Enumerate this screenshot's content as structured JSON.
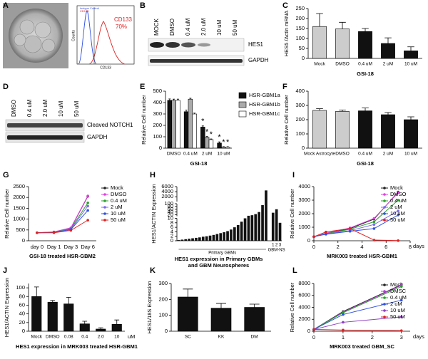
{
  "panel_labels": [
    "A",
    "B",
    "C",
    "D",
    "E",
    "F",
    "G",
    "H",
    "I",
    "J",
    "K",
    "L"
  ],
  "panel_a": {
    "y_label": "Counts",
    "x_label": "CD133",
    "legend": [
      "Isotype Control",
      "CD133"
    ],
    "marker": "CD133",
    "percent": "70%"
  },
  "panel_b": {
    "lanes": [
      "MOCK",
      "DMSO",
      "0.4 uM",
      "2.0 uM",
      "10 uM",
      "50 uM"
    ],
    "bands": [
      "HES1",
      "GAPDH"
    ]
  },
  "panel_d": {
    "lanes": [
      "DMSO",
      "0.4 uM",
      "2.0 uM",
      "10 uM",
      "50 uM"
    ],
    "bands": [
      "Cleaved NOTCH1",
      "GAPDH"
    ]
  },
  "chart_data": [
    {
      "type": "bar",
      "y_label": "HES5 /Actin mRNA",
      "x_label": "GSI-18",
      "categories": [
        "Mock",
        "DMSO",
        "0.4 uM",
        "2 uM",
        "10 uM"
      ],
      "values": [
        160,
        148,
        135,
        75,
        38
      ],
      "errors": [
        65,
        33,
        15,
        28,
        20
      ],
      "colors": [
        "#cccccc",
        "#cccccc",
        "#111111",
        "#111111",
        "#111111"
      ],
      "ylim": [
        0,
        250
      ],
      "yticks": [
        0,
        50,
        100,
        150,
        200,
        250
      ]
    },
    {
      "type": "grouped-bar",
      "y_label": "Relative Cell number",
      "x_label": "GSI-18",
      "categories": [
        "DMSO",
        "0.4 uM",
        "2 uM",
        "10 uM"
      ],
      "significance": [
        null,
        null,
        "*",
        "*"
      ],
      "series": [
        {
          "name": "HSR-GBM1a",
          "color": "#111111",
          "values": [
            420,
            320,
            185,
            45
          ],
          "errors": [
            12,
            15,
            10,
            10
          ]
        },
        {
          "name": "HSR-GBM1b",
          "color": "#aaaaaa",
          "values": [
            420,
            430,
            95,
            10
          ],
          "errors": [
            10,
            8,
            8,
            3
          ]
        },
        {
          "name": "HSR-GBM1c",
          "color": "#ffffff",
          "values": [
            420,
            300,
            75,
            10
          ],
          "errors": [
            10,
            8,
            6,
            3
          ]
        }
      ],
      "legend": "right",
      "ylim": [
        0,
        500
      ],
      "yticks": [
        0,
        100,
        200,
        300,
        400,
        500
      ]
    },
    {
      "type": "bar",
      "y_label": "Relative Cell number",
      "x_label": "GSI-18",
      "categories": [
        "Mock Astrocyte",
        "DMSO",
        "0.4 uM",
        "2 uM",
        "10 uM"
      ],
      "values": [
        265,
        258,
        262,
        235,
        200
      ],
      "errors": [
        12,
        10,
        20,
        15,
        20
      ],
      "colors": [
        "#cccccc",
        "#cccccc",
        "#111111",
        "#111111",
        "#111111"
      ],
      "ylim": [
        0,
        400
      ],
      "yticks": [
        0,
        100,
        200,
        300,
        400
      ]
    },
    {
      "type": "line",
      "y_label": "Relative Cell number",
      "x_label": "GSI-18 treated HSR-GBM2",
      "categories": [
        "day 0",
        "Day 1",
        "Day 3",
        "Day 6"
      ],
      "legend": "right",
      "series": [
        {
          "name": "Mock",
          "color": "#222222",
          "values": [
            370,
            400,
            580,
            2050
          ]
        },
        {
          "name": "DMSO",
          "color": "#e040e0",
          "values": [
            370,
            410,
            600,
            2070
          ]
        },
        {
          "name": "0.4 uM",
          "color": "#2ca02c",
          "values": [
            370,
            400,
            560,
            1750
          ]
        },
        {
          "name": "2 uM",
          "color": "#7b68ee",
          "values": [
            370,
            390,
            540,
            1600
          ]
        },
        {
          "name": "10 uM",
          "color": "#3050e0",
          "values": [
            370,
            380,
            520,
            1400
          ]
        },
        {
          "name": "50 uM",
          "color": "#e02020",
          "values": [
            370,
            370,
            480,
            950
          ]
        }
      ],
      "ylim": [
        0,
        2500
      ],
      "yticks": [
        0,
        500,
        1000,
        1500,
        2000,
        2500
      ]
    },
    {
      "type": "broken-bar",
      "y_label": "HES1/ACTIN Expression",
      "caption": [
        "HES1 expression in Primary GBMs",
        "and GBM Neurospheres"
      ],
      "groups": [
        "Primary GBMs",
        "GBM-NS"
      ],
      "categories": [
        null,
        null,
        null,
        null,
        null,
        null,
        null,
        null,
        null,
        null,
        null,
        null,
        null,
        null,
        null,
        null,
        null,
        null,
        null,
        null,
        null,
        null,
        null,
        null,
        null,
        null,
        "1",
        "2",
        "3"
      ],
      "values": [
        0.3,
        0.5,
        0.7,
        0.9,
        1.1,
        1.3,
        1.5,
        1.8,
        2.0,
        2.3,
        2.6,
        3.0,
        3.4,
        3.8,
        4.3,
        5,
        6,
        7,
        8.5,
        10,
        13,
        17,
        25,
        40,
        90,
        4500,
        35,
        60,
        8
      ],
      "color": "#111111",
      "segments": [
        {
          "ylim": [
            0,
            10
          ],
          "yticks": [
            0,
            2,
            4,
            6,
            8,
            10
          ]
        },
        {
          "ylim": [
            10,
            100
          ],
          "yticks": [
            20,
            40,
            60,
            80,
            100
          ]
        },
        {
          "ylim": [
            100,
            6000
          ],
          "yticks": [
            2000,
            4000,
            6000
          ]
        }
      ]
    },
    {
      "type": "line",
      "y_label": "Relative Cell number",
      "x_label": "MRK003 treated HSR-GBM1",
      "x_unit": "days",
      "x": [
        0,
        1,
        3,
        5,
        7
      ],
      "xlim": [
        0,
        8
      ],
      "xticks": [
        0,
        2,
        4,
        6,
        8
      ],
      "legend": "upper right",
      "series": [
        {
          "name": "Mock",
          "color": "#222222",
          "values": [
            300,
            550,
            900,
            1600,
            3600
          ]
        },
        {
          "name": "DMSO",
          "color": "#e040e0",
          "values": [
            300,
            560,
            950,
            1650,
            3550
          ]
        },
        {
          "name": "0.4 uM",
          "color": "#2ca02c",
          "values": [
            300,
            520,
            850,
            1400,
            3000
          ]
        },
        {
          "name": "2 uM",
          "color": "#7b68ee",
          "values": [
            300,
            500,
            750,
            1200,
            2200
          ]
        },
        {
          "name": "10 uM",
          "color": "#3050e0",
          "values": [
            300,
            480,
            700,
            900,
            1900
          ]
        },
        {
          "name": "50 uM",
          "color": "#e02020",
          "values": [
            300,
            650,
            900,
            50,
            10
          ]
        }
      ],
      "ylim": [
        0,
        4000
      ],
      "yticks": [
        0,
        1000,
        2000,
        3000,
        4000
      ]
    },
    {
      "type": "bar",
      "y_label": "HES1/ACTIN Expression",
      "x_label": "HES1 expression in MRK003 treated HSR-GBM1",
      "x_unit": "uM",
      "categories": [
        "Mock",
        "DMSO",
        "0.08",
        "0.4",
        "2.0",
        "10"
      ],
      "values": [
        80,
        67,
        63,
        17,
        5,
        16
      ],
      "errors": [
        22,
        4,
        15,
        6,
        3,
        10
      ],
      "color": "#111111",
      "ylim": [
        0,
        110
      ],
      "yticks": [
        0,
        20,
        40,
        60,
        80,
        100
      ]
    },
    {
      "type": "bar",
      "y_label": "HES1/18S Expression",
      "categories": [
        "SC",
        "KK",
        "DM"
      ],
      "values": [
        215,
        145,
        150
      ],
      "errors": [
        50,
        30,
        20
      ],
      "color": "#111111",
      "ylim": [
        0,
        300
      ],
      "yticks": [
        0,
        100,
        200,
        300
      ]
    },
    {
      "type": "line",
      "y_label": "Relative Cell number",
      "x_label": "MRK003 treated GBM_SC",
      "x_unit": "days",
      "x": [
        0,
        1,
        3
      ],
      "xlim": [
        0,
        3.3
      ],
      "xticks": [
        0,
        1,
        2,
        3
      ],
      "legend": "upper right",
      "series": [
        {
          "name": "Mock",
          "color": "#222222",
          "values": [
            300,
            3300,
            7800
          ]
        },
        {
          "name": "DMSC",
          "color": "#b040d0",
          "values": [
            300,
            3200,
            7700
          ]
        },
        {
          "name": "0.4 uM",
          "color": "#2ca02c",
          "values": [
            300,
            3100,
            7500
          ]
        },
        {
          "name": "2 uM",
          "color": "#3050e0",
          "values": [
            300,
            2800,
            5200
          ]
        },
        {
          "name": "10 uM",
          "color": "#9040c0",
          "values": [
            300,
            1500,
            2400
          ]
        },
        {
          "name": "50 uM",
          "color": "#e02020",
          "values": [
            300,
            200,
            100
          ]
        }
      ],
      "ylim": [
        0,
        8000
      ],
      "yticks": [
        0,
        2000,
        4000,
        6000,
        8000
      ]
    }
  ]
}
